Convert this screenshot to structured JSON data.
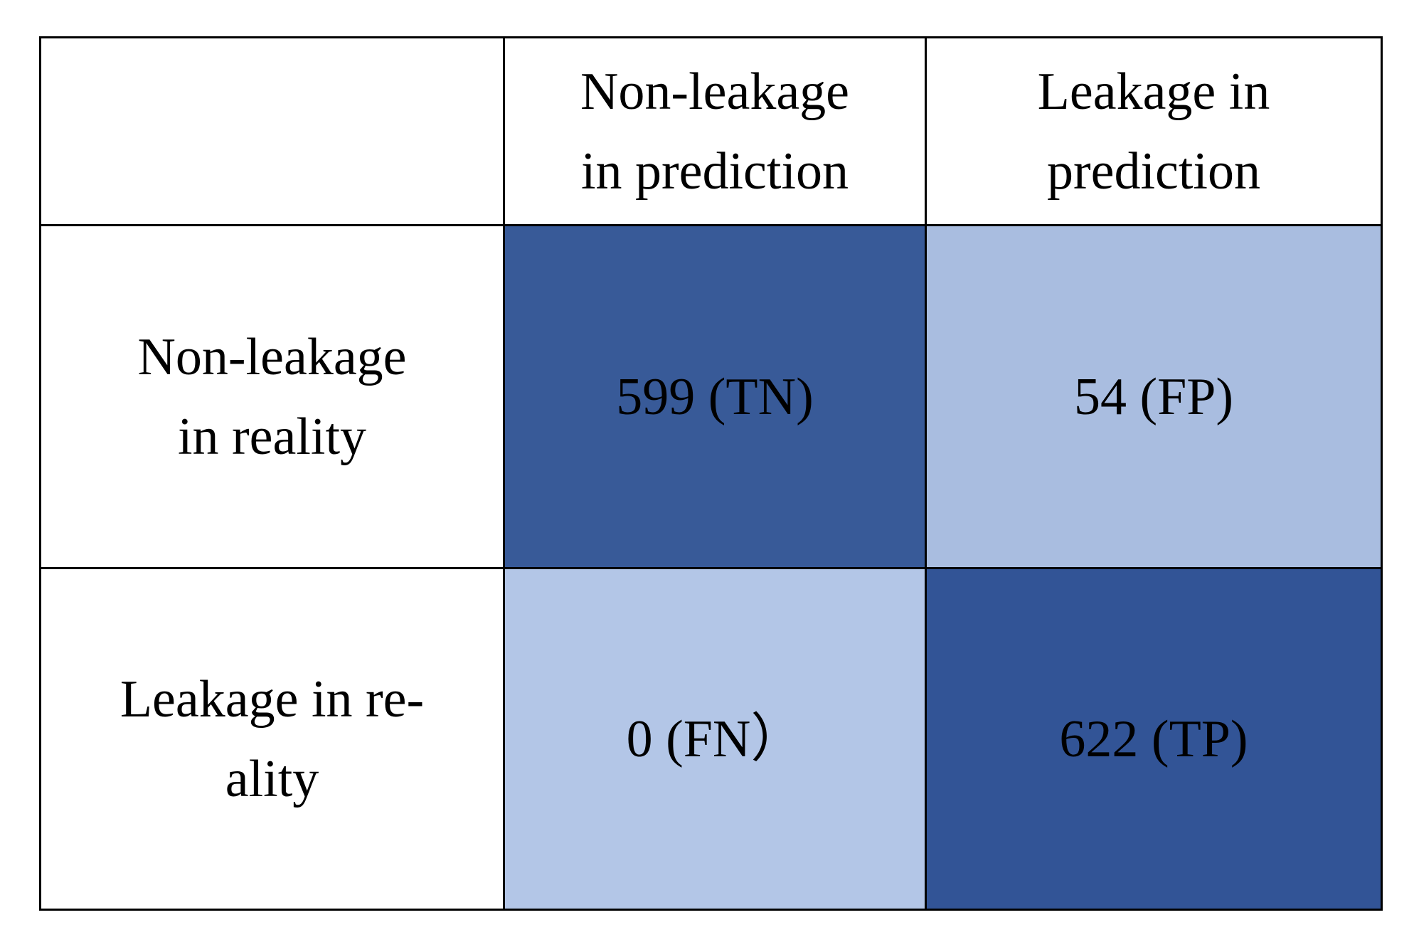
{
  "table": {
    "header": [
      [
        "Non-leakage",
        "in prediction"
      ],
      [
        "Leakage in",
        "prediction"
      ]
    ],
    "rows": [
      {
        "label": [
          "Non-leakage",
          "in reality"
        ],
        "cells": [
          {
            "text": "599 (TN)",
            "color": "#385a98"
          },
          {
            "text": "54 (FP)",
            "color": "#a9bde0"
          }
        ]
      },
      {
        "label": [
          "Leakage in re-",
          "ality"
        ],
        "cells": [
          {
            "text": "0 (FN）",
            "color": "#b3c6e7"
          },
          {
            "text": "622 (TP)",
            "color": "#325496"
          }
        ]
      }
    ]
  }
}
